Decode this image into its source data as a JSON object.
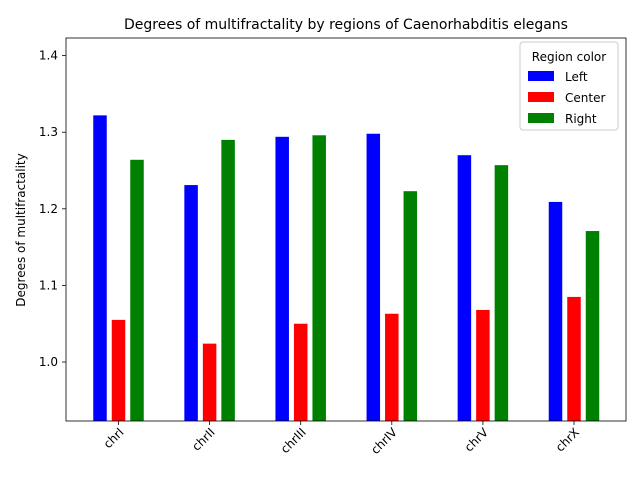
{
  "chart_data": {
    "type": "bar",
    "title": "Degrees of multifractality by regions of Caenorhabditis elegans",
    "xlabel": "",
    "ylabel": "Degrees of multifractality",
    "categories": [
      "chrI",
      "chrII",
      "chrIII",
      "chrIV",
      "chrV",
      "chrX"
    ],
    "series": [
      {
        "name": "Left",
        "color": "#0000ff",
        "values": [
          1.322,
          1.231,
          1.294,
          1.298,
          1.27,
          1.209
        ]
      },
      {
        "name": "Center",
        "color": "#ff0000",
        "values": [
          1.055,
          1.024,
          1.05,
          1.063,
          1.068,
          1.085
        ]
      },
      {
        "name": "Right",
        "color": "#008000",
        "values": [
          1.264,
          1.29,
          1.296,
          1.223,
          1.257,
          1.171
        ]
      }
    ],
    "ylim": [
      0.923,
      1.423
    ],
    "yticks": [
      "1.0",
      "1.1",
      "1.2",
      "1.3",
      "1.4"
    ],
    "legend": {
      "title": "Region color",
      "position": "top-right"
    },
    "grid": false
  }
}
